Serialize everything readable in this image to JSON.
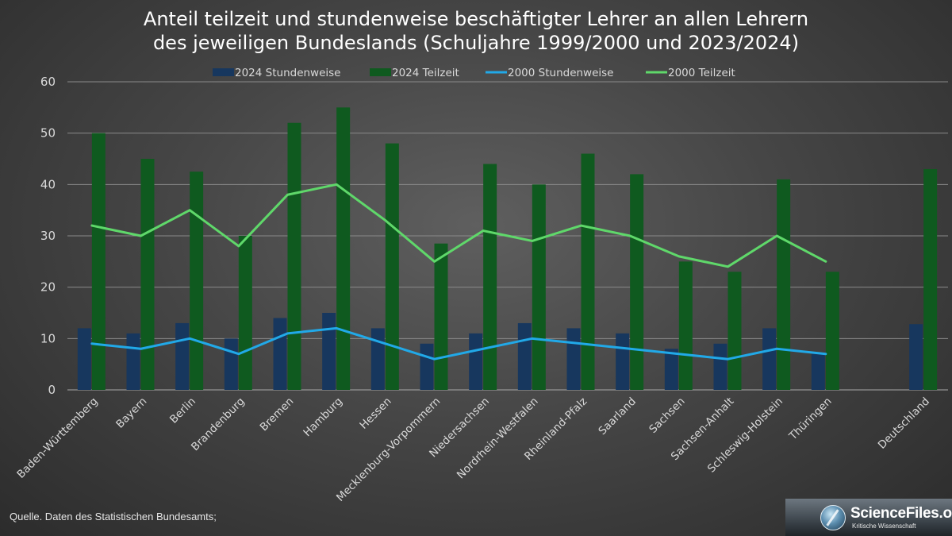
{
  "chart_data": {
    "type": "bar",
    "title": [
      "Anteil teilzeit und stundenweise beschäftigter Lehrer an allen Lehrern",
      "des jeweiligen Bundeslands (Schuljahre 1999/2000 und 2023/2024)"
    ],
    "categories": [
      "Baden-Württemberg",
      "Bayern",
      "Berlin",
      "Brandenburg",
      "Bremen",
      "Hamburg",
      "Hessen",
      "Mecklenburg-Vorpommern",
      "Niedersachsen",
      "Nordrhein-Westfalen",
      "Rheinland-Pfalz",
      "Saarland",
      "Sachsen",
      "Sachsen-Anhalt",
      "Schleswig-Holstein",
      "Thüringen",
      "",
      "Deutschland"
    ],
    "ylim": [
      0,
      60
    ],
    "yticks": [
      "0",
      "10",
      "20",
      "30",
      "40",
      "50",
      "60"
    ],
    "grid": true,
    "legend_position": "top",
    "series": [
      {
        "name": "2024 Stundenweise",
        "kind": "bar",
        "color": "#17375e",
        "values": [
          12,
          11,
          13,
          10,
          14,
          15,
          12,
          9,
          11,
          13,
          12,
          11,
          8,
          9,
          12,
          7,
          null,
          12.8
        ]
      },
      {
        "name": "2024 Teilzeit",
        "kind": "bar",
        "color": "#0f5a1f",
        "values": [
          50,
          45,
          42.5,
          30,
          52,
          55,
          48,
          28.5,
          44,
          40,
          46,
          42,
          25,
          23,
          41,
          23,
          null,
          43
        ]
      },
      {
        "name": "2000 Stundenweise",
        "kind": "line",
        "color": "#21a9e8",
        "values": [
          9,
          8,
          10,
          7,
          11,
          12,
          9,
          6,
          8,
          10,
          9,
          8,
          7,
          6,
          8,
          7,
          null,
          null
        ]
      },
      {
        "name": "2000 Teilzeit",
        "kind": "line",
        "color": "#5fd86a",
        "values": [
          32,
          30,
          35,
          28,
          38,
          40,
          33,
          25,
          31,
          29,
          32,
          30,
          26,
          24,
          30,
          25,
          null,
          null
        ]
      }
    ]
  },
  "footer": {
    "source": "Quelle. Daten des Statistischen Bundesamts;",
    "logo_name": "ScienceFiles.org",
    "logo_tagline": "Kritische Wissenschaft"
  }
}
